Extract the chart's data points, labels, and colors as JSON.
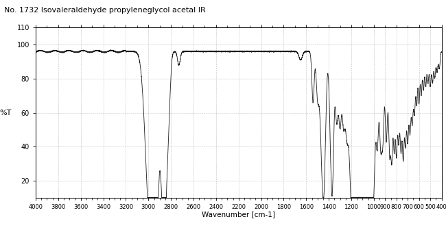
{
  "title": "No. 1732 Isovaleraldehyde propyleneglycol acetal IR",
  "xlabel": "Wavenumber [cm-1]",
  "ylabel": "%T",
  "xlim_left": 4000,
  "xlim_right": 400,
  "ylim": [
    10,
    110
  ],
  "yticks": [
    20,
    40,
    60,
    80,
    100,
    110
  ],
  "major_xticks": [
    4000,
    3800,
    3600,
    3400,
    3200,
    3000,
    2800,
    2600,
    2400,
    2200,
    2000,
    1800,
    1600,
    1400,
    1200,
    1000
  ],
  "small_xticks": [
    900,
    800,
    700,
    600,
    500,
    400
  ],
  "line_color": "#1a1a1a",
  "grid_color": "#b0b0b0",
  "bg_color": "#ffffff"
}
